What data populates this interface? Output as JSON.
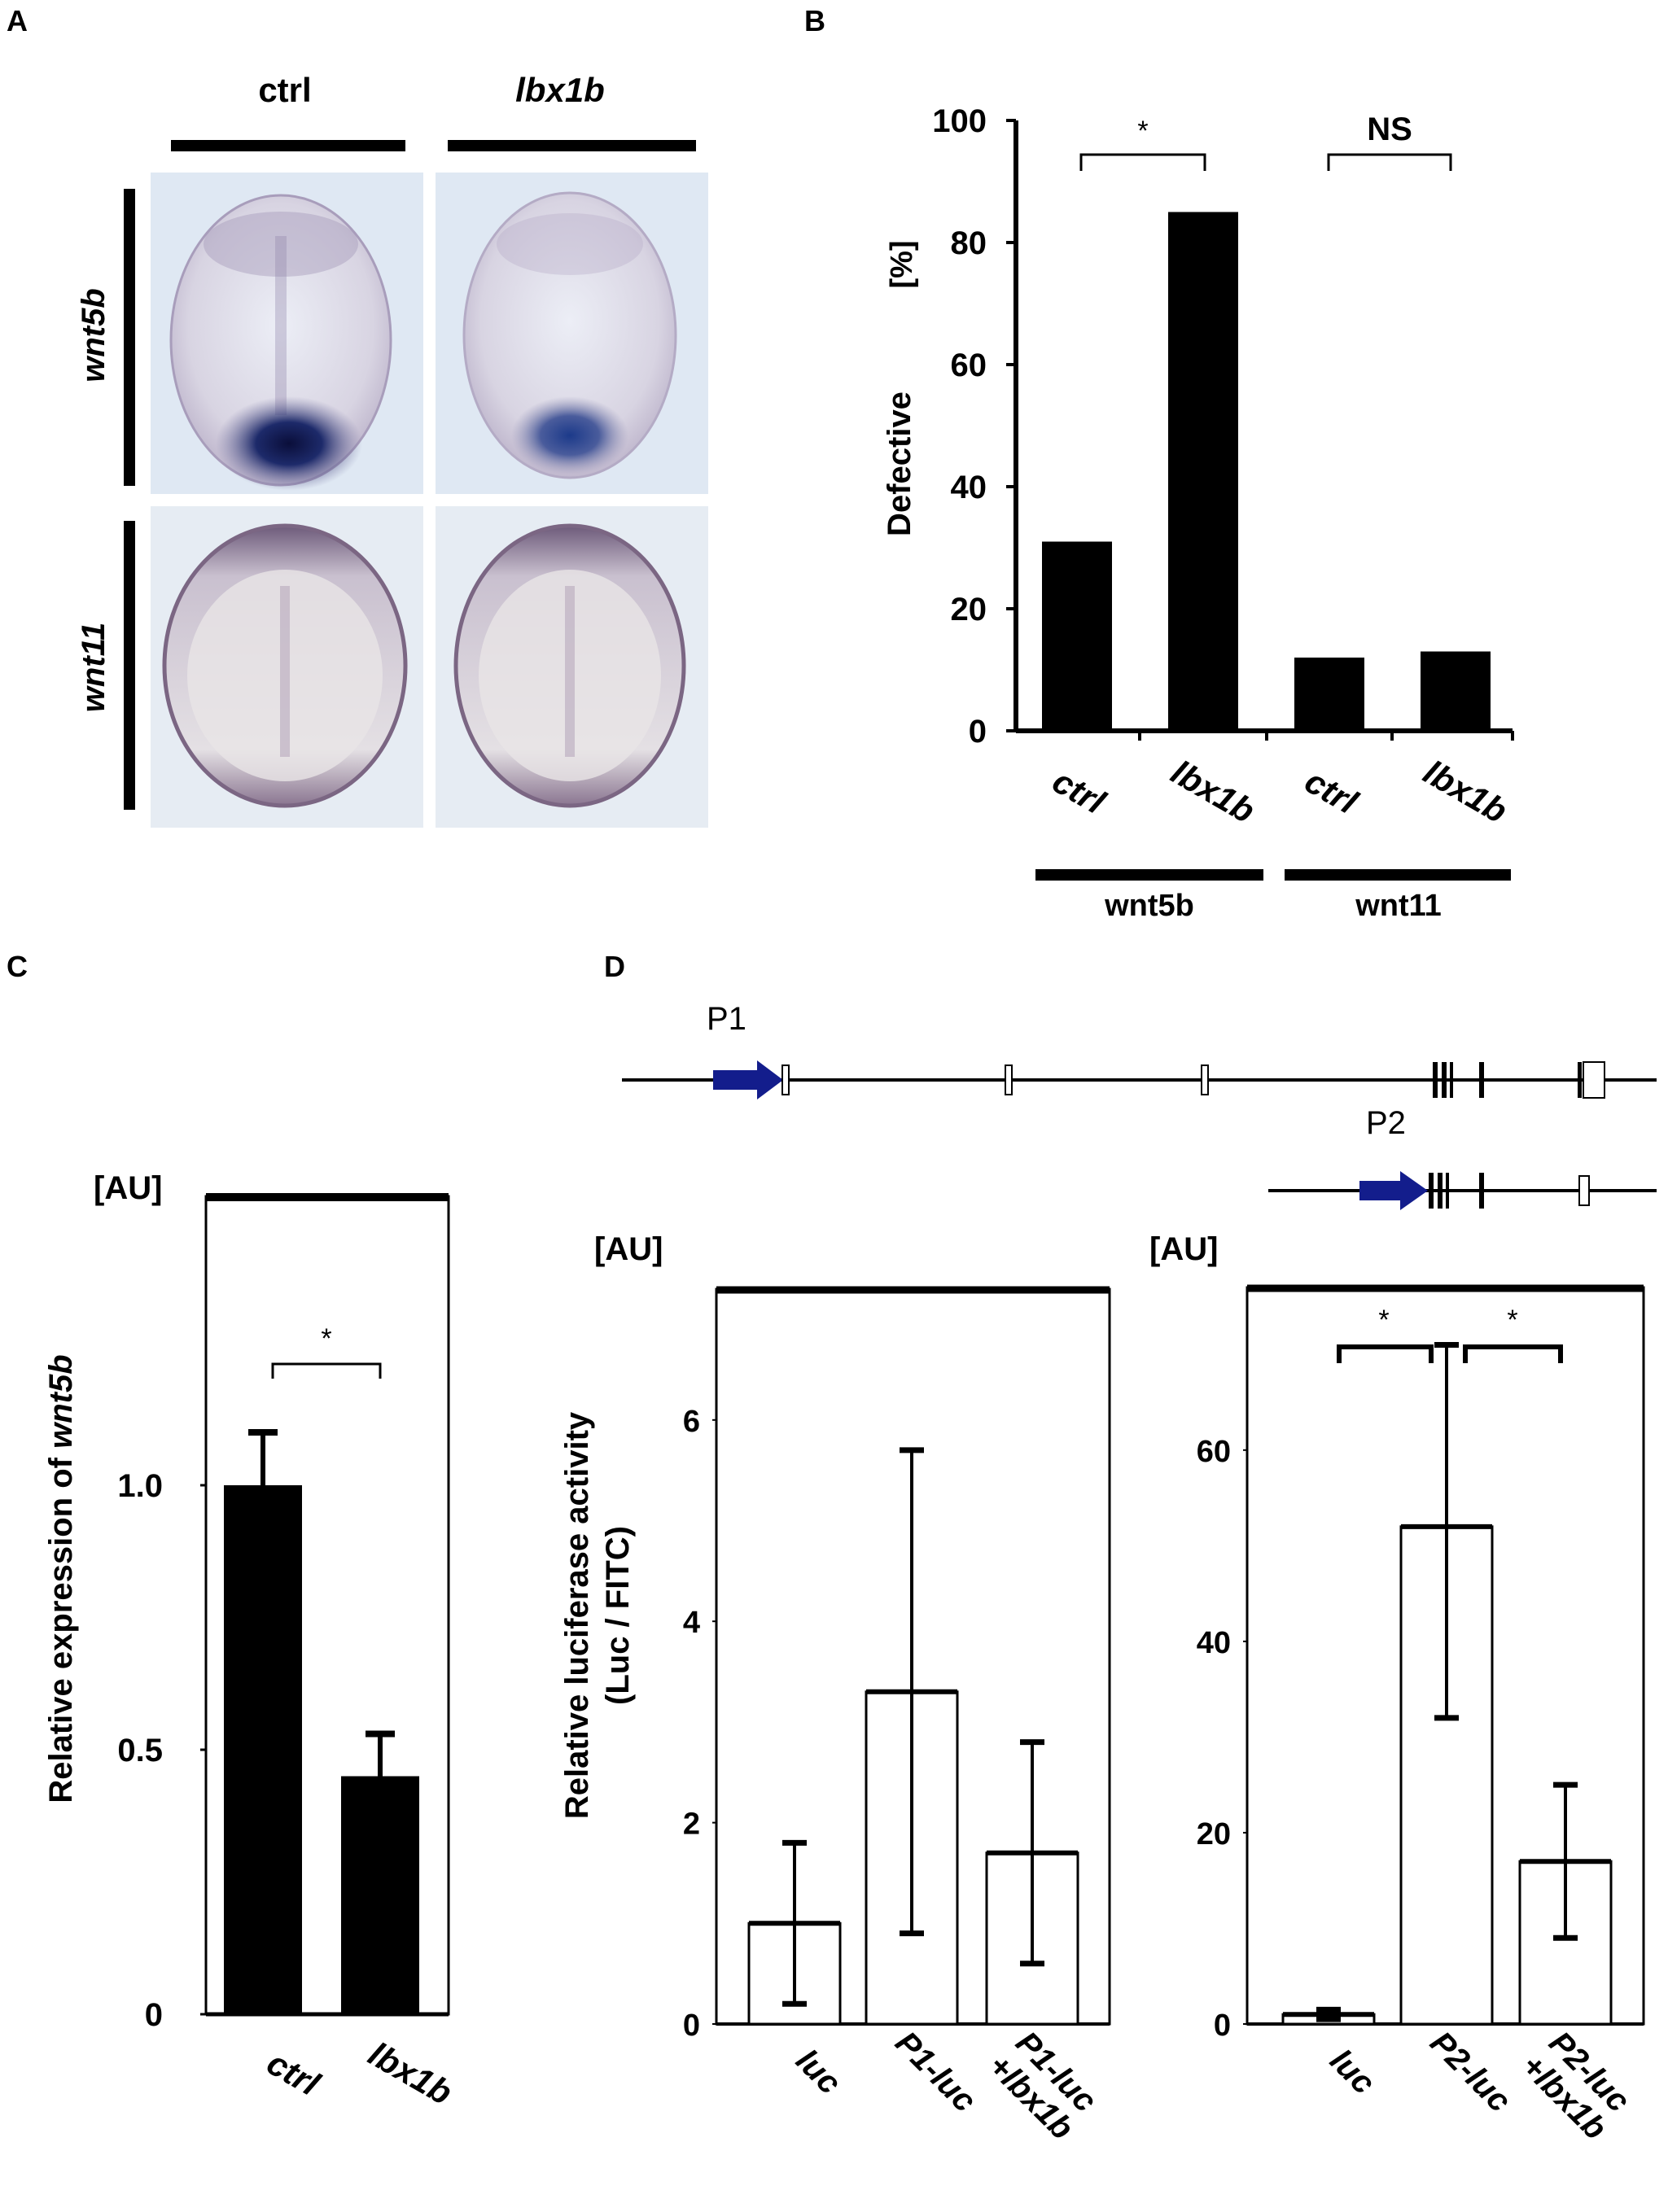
{
  "panels": {
    "A": {
      "label": "A",
      "columns": [
        "ctrl",
        "lbx1b"
      ],
      "rows": [
        "wnt5b",
        "wnt11"
      ]
    },
    "B": {
      "label": "B",
      "y_unit": "[%]",
      "y_label": "Defective",
      "sig": [
        "*",
        "NS"
      ],
      "groups": [
        "wnt5b",
        "wnt11"
      ]
    },
    "C": {
      "label": "C",
      "unit": "[AU]",
      "y_label_prefix": "Relative  expression of ",
      "y_label_gene": "wnt5b",
      "sig": "*"
    },
    "D": {
      "label": "D",
      "promoter_labels": [
        "P1",
        "P2"
      ],
      "left_unit": "[AU]",
      "right_unit": "[AU]",
      "y_label_line1": "Relative luciferase activity",
      "y_label_line2": "(Luc / FITC)",
      "sig": [
        "*",
        "*"
      ]
    }
  },
  "chart_data": [
    {
      "panel": "B",
      "type": "bar",
      "categories": [
        "ctrl",
        "lbx1b",
        "ctrl",
        "lbx1b"
      ],
      "groups": [
        "wnt5b",
        "wnt5b",
        "wnt11",
        "wnt11"
      ],
      "values": [
        31,
        85,
        12,
        13
      ],
      "ylabel": "Defective [%]",
      "ylim": [
        0,
        100
      ],
      "yticks": [
        0,
        20,
        40,
        60,
        80,
        100
      ],
      "significance": [
        {
          "pair": [
            0,
            1
          ],
          "label": "*"
        },
        {
          "pair": [
            2,
            3
          ],
          "label": "NS"
        }
      ],
      "bar_color": "#000000"
    },
    {
      "panel": "C",
      "type": "bar",
      "categories": [
        "ctrl",
        "lbx1b"
      ],
      "values": [
        1.0,
        0.45
      ],
      "error_upper": [
        1.1,
        0.53
      ],
      "ylabel": "Relative  expression of wnt5b",
      "ylim": [
        0,
        1.5
      ],
      "yticks": [
        "0",
        "0.5",
        "1.0"
      ],
      "significance": [
        {
          "pair": [
            0,
            1
          ],
          "label": "*"
        }
      ],
      "bar_color": "#000000"
    },
    {
      "panel": "D-left",
      "type": "bar",
      "categories": [
        "luc",
        "P1-luc",
        "P1-luc +lbx1b"
      ],
      "values": [
        1.0,
        3.3,
        1.7
      ],
      "error_lower": [
        0.2,
        0.9,
        0.6
      ],
      "error_upper": [
        1.8,
        5.7,
        2.8
      ],
      "ylabel": "Relative luciferase activity (Luc / FITC)",
      "ylim": [
        0,
        7.3
      ],
      "yticks": [
        0,
        2,
        4,
        6
      ],
      "bar_color": "#ffffff"
    },
    {
      "panel": "D-right",
      "type": "bar",
      "categories": [
        "luc",
        "P2-luc",
        "P2-luc +lbx1b"
      ],
      "values": [
        1,
        52,
        17
      ],
      "error_lower": [
        0.5,
        32,
        9
      ],
      "error_upper": [
        1.5,
        71,
        25
      ],
      "ylim": [
        0,
        77
      ],
      "yticks": [
        0,
        20,
        40,
        60
      ],
      "significance": [
        {
          "pair": [
            0,
            1
          ],
          "label": "*"
        },
        {
          "pair": [
            1,
            2
          ],
          "label": "*"
        }
      ],
      "bar_color": "#ffffff"
    }
  ]
}
